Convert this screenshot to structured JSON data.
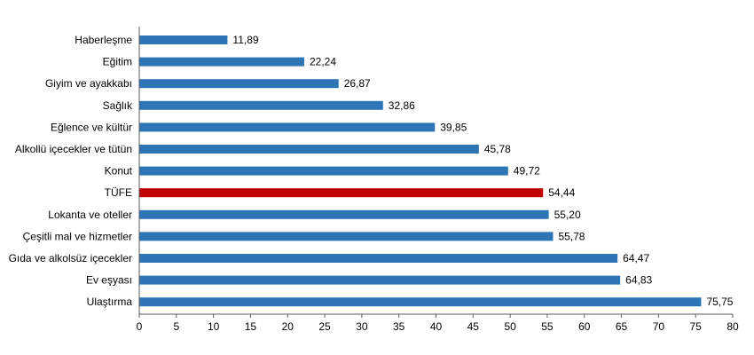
{
  "colors": {
    "bar": "#2E75B6",
    "bar_highlight": "#C00000",
    "axis": "#595959"
  },
  "chart_data": {
    "type": "bar",
    "orientation": "horizontal",
    "categories": [
      "Haberleşme",
      "Eğitim",
      "Giyim ve ayakkabı",
      "Sağlık",
      "Eğlence ve kültür",
      "Alkollü içecekler ve tütün",
      "Konut",
      "TÜFE",
      "Lokanta ve oteller",
      "Çeşitli mal ve hizmetler",
      "Gıda ve alkolsüz içecekler",
      "Ev eşyası",
      "Ulaştırma"
    ],
    "values": [
      11.89,
      22.24,
      26.87,
      32.86,
      39.85,
      45.78,
      49.72,
      54.44,
      55.2,
      55.78,
      64.47,
      64.83,
      75.75
    ],
    "value_labels": [
      "11,89",
      "22,24",
      "26,87",
      "32,86",
      "39,85",
      "45,78",
      "49,72",
      "54,44",
      "55,20",
      "55,78",
      "64,47",
      "64,83",
      "75,75"
    ],
    "highlight_category": "TÜFE",
    "xlim": [
      0,
      80
    ],
    "xticks": [
      0,
      5,
      10,
      15,
      20,
      25,
      30,
      35,
      40,
      45,
      50,
      55,
      60,
      65,
      70,
      75,
      80
    ],
    "title": "",
    "xlabel": "",
    "ylabel": "",
    "grid": false,
    "legend": "none"
  }
}
